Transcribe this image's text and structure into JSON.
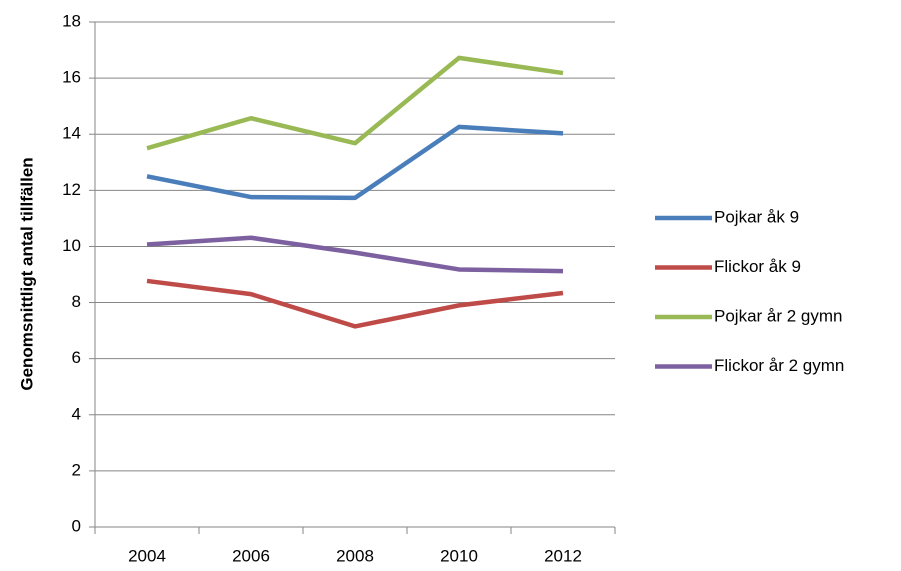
{
  "chart_data": {
    "type": "line",
    "y_label": "Genomsnittligt antal tillfällen",
    "categories": [
      "2004",
      "2006",
      "2008",
      "2010",
      "2012"
    ],
    "series": [
      {
        "name": "Pojkar åk 9",
        "color": "#4a7ebb",
        "values": [
          12.5,
          11.76,
          11.73,
          14.26,
          14.03
        ]
      },
      {
        "name": "Flickor åk 9",
        "color": "#be4b48",
        "values": [
          8.77,
          8.3,
          7.15,
          7.9,
          8.34
        ]
      },
      {
        "name": "Pojkar år 2 gymn",
        "color": "#98b954",
        "values": [
          13.5,
          14.57,
          13.68,
          16.72,
          16.18
        ]
      },
      {
        "name": "Flickor år 2 gymn",
        "color": "#7d60a0",
        "values": [
          10.07,
          10.31,
          9.78,
          9.18,
          9.12
        ]
      }
    ],
    "ylim": [
      0,
      18
    ],
    "yticks": [
      0,
      2,
      4,
      6,
      8,
      10,
      12,
      14,
      16,
      18
    ],
    "grid": true,
    "legend": "right"
  }
}
